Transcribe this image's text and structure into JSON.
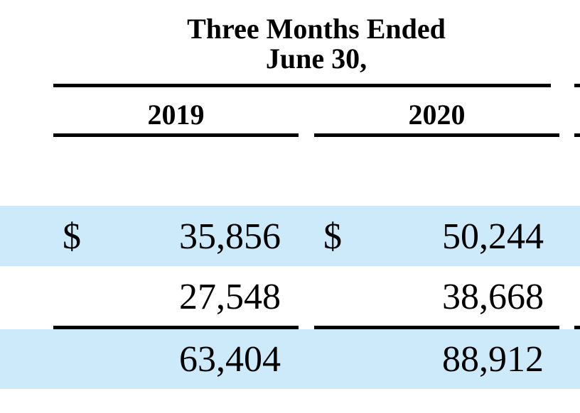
{
  "header": {
    "title_line1": "Three Months Ended",
    "title_line2": "June 30,"
  },
  "columns": [
    "2019",
    "2020"
  ],
  "rows": [
    {
      "shaded": true,
      "currency": "$",
      "values": [
        "35,856",
        "50,244"
      ]
    },
    {
      "shaded": false,
      "currency": "",
      "values": [
        "27,548",
        "38,668"
      ]
    },
    {
      "shaded": true,
      "currency": "",
      "values": [
        "63,404",
        "88,912"
      ]
    }
  ],
  "colors": {
    "row_band": "#cdeafb",
    "text": "#000000",
    "rule": "#000000"
  }
}
